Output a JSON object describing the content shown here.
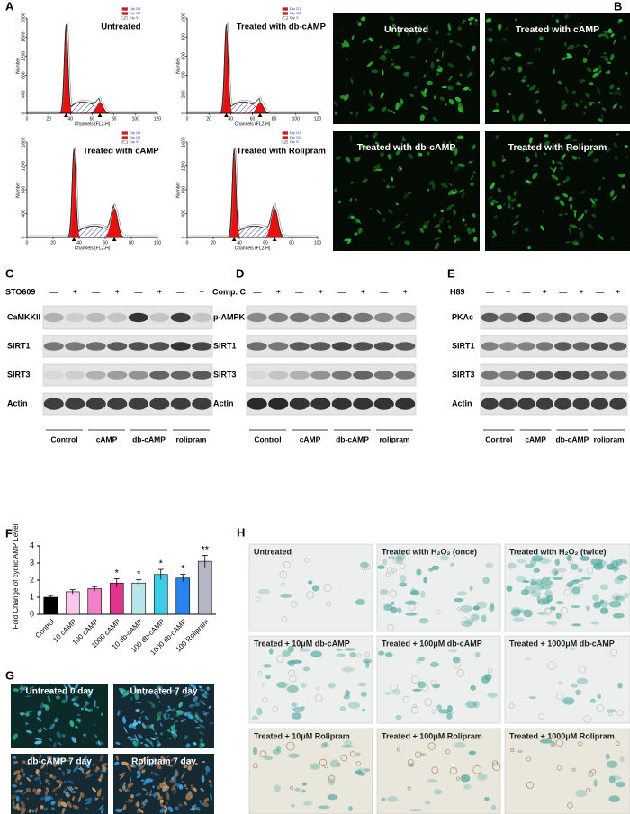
{
  "panels": {
    "A": {
      "label": "A",
      "axis_x": "Channels (FL2-H)",
      "axis_y": "Number",
      "legend": [
        "Dip G1",
        "Dip G2",
        "Dip S"
      ],
      "plots": [
        {
          "title": "Untreated",
          "xticks": [
            0,
            20,
            40,
            60,
            80,
            100,
            120
          ],
          "yticks": [
            0,
            400,
            800,
            1200,
            1600,
            2000
          ]
        },
        {
          "title": "Treated with db-cAMP",
          "xticks": [
            0,
            20,
            40,
            60,
            80,
            100,
            120
          ],
          "yticks": [
            0,
            200,
            400,
            600,
            800,
            1000
          ]
        },
        {
          "title": "Treated with cAMP",
          "xticks": [
            0,
            20,
            40,
            60,
            80,
            100
          ],
          "yticks": [
            0,
            400,
            800,
            1200,
            1600
          ]
        },
        {
          "title": "Treated with Rolipram",
          "xticks": [
            0,
            20,
            40,
            60,
            80,
            100
          ],
          "yticks": [
            0,
            400,
            800,
            1200,
            1600
          ]
        }
      ]
    },
    "B": {
      "label": "B",
      "images": [
        "Untreated",
        "Treated with cAMP",
        "Treated with db-cAMP",
        "Treated with Rolipram"
      ]
    },
    "C": {
      "label": "C",
      "treatment": "STO609",
      "signs": [
        "—",
        "+",
        "—",
        "+",
        "—",
        "+",
        "—",
        "+"
      ],
      "rows": [
        "CaMKKII",
        "SIRT1",
        "SIRT3",
        "Actin"
      ],
      "groups": [
        "Control",
        "cAMP",
        "db-cAMP",
        "rolipram"
      ]
    },
    "D": {
      "label": "D",
      "treatment": "Comp. C",
      "signs": [
        "—",
        "+",
        "—",
        "+",
        "—",
        "+",
        "—",
        "+"
      ],
      "rows": [
        "p-AMPK",
        "SIRT1",
        "SIRT3",
        "Actin"
      ],
      "groups": [
        "Control",
        "cAMP",
        "db-cAMP",
        "rolipram"
      ]
    },
    "E": {
      "label": "E",
      "treatment": "H89",
      "signs": [
        "—",
        "+",
        "—",
        "+",
        "—",
        "+",
        "—",
        "+"
      ],
      "rows": [
        "PKAc",
        "SIRT1",
        "SIRT3",
        "Actin"
      ],
      "groups": [
        "Control",
        "cAMP",
        "db-cAMP",
        "rolipram"
      ]
    },
    "G": {
      "label": "G",
      "images": [
        "Untreated 0 day",
        "Untreated 7 day",
        "db-cAMP 7 day",
        "Rolipram 7 day"
      ]
    },
    "H": {
      "label": "H",
      "images": [
        "Untreated",
        "Treated with H₂O₂ (once)",
        "Treated with H₂O₂ (twice)",
        "Treated + 10μM db-cAMP",
        "Treated + 100μM db-cAMP",
        "Treated + 1000μM db-cAMP",
        "Treated + 10μM Rolipram",
        "Treated + 100μM Rolipram",
        "Treated + 1000μM Rolipram"
      ]
    }
  },
  "chart_data": {
    "label": "F",
    "type": "bar",
    "y_label": "Fold Change of cyclic AMP Level",
    "categories": [
      "Control",
      "10 cAMP",
      "100 cAMP",
      "1000 cAMP",
      "10 db-cAMP",
      "100 db-cAMP",
      "1000 db-cAMP",
      "100 Rolipram"
    ],
    "values": [
      1.0,
      1.32,
      1.5,
      1.83,
      1.83,
      2.33,
      2.12,
      3.1
    ],
    "errors": [
      0.1,
      0.12,
      0.12,
      0.25,
      0.2,
      0.3,
      0.22,
      0.35
    ],
    "annotations": [
      null,
      null,
      null,
      "*",
      "*",
      "*",
      "*",
      "**"
    ],
    "colors": [
      "#000000",
      "#f9c7ee",
      "#f27fc8",
      "#e0358c",
      "#b9e4ea",
      "#3fcbe8",
      "#2a83ea",
      "#b4b6c6"
    ],
    "ylim": [
      0,
      4
    ],
    "yticks": [
      0,
      1,
      2,
      3,
      4
    ]
  }
}
